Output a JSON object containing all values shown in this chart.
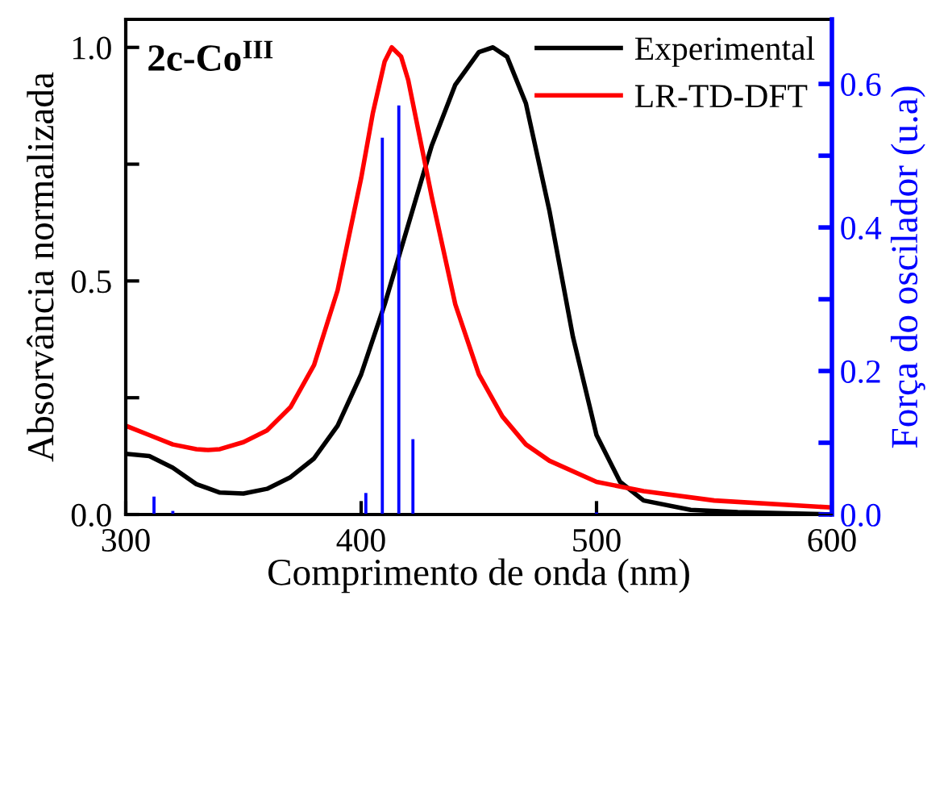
{
  "chart_data": {
    "type": "line",
    "xlabel": "Comprimento de onda (nm)",
    "ylabel": "Absorvância normalizada",
    "y2label": "Força do oscilador (u.a)",
    "annotations": [
      "2c-Co$^{III}$"
    ],
    "xlim": [
      300,
      600
    ],
    "xticks": [
      300,
      400,
      500,
      600
    ],
    "ylim": [
      0,
      1.06
    ],
    "yticks": [
      {
        "value": 0,
        "label": "0.0"
      },
      {
        "value": 0.25,
        "label": null
      },
      0.5,
      {
        "value": 0.75,
        "label": null
      },
      {
        "value": 1,
        "label": "1.0"
      }
    ],
    "y2lim": [
      0,
      0.69
    ],
    "y2ticks": [
      {
        "value": 0,
        "label": "0.0"
      },
      {
        "value": 0.1,
        "label": null
      },
      0.2,
      {
        "value": 0.3,
        "label": null
      },
      0.4,
      {
        "value": 0.5,
        "label": null
      },
      0.6
    ],
    "legend": "top right",
    "grid": false,
    "series": [
      {
        "name": "Experimental",
        "color": "#000000",
        "x": [
          300,
          310,
          320,
          330,
          340,
          350,
          360,
          370,
          380,
          390,
          400,
          410,
          420,
          430,
          440,
          450,
          456,
          462,
          470,
          480,
          490,
          500,
          510,
          520,
          540,
          560,
          600
        ],
        "values": [
          0.13,
          0.125,
          0.1,
          0.065,
          0.047,
          0.045,
          0.055,
          0.08,
          0.12,
          0.19,
          0.3,
          0.45,
          0.62,
          0.79,
          0.92,
          0.99,
          1.0,
          0.98,
          0.88,
          0.65,
          0.38,
          0.17,
          0.07,
          0.03,
          0.01,
          0.005,
          0.0
        ]
      },
      {
        "name": "LR-TD-DFT",
        "color": "#ff0000",
        "x": [
          300,
          310,
          320,
          330,
          335,
          340,
          350,
          360,
          370,
          380,
          390,
          400,
          405,
          410,
          413,
          417,
          420,
          430,
          440,
          450,
          460,
          470,
          480,
          500,
          520,
          550,
          600
        ],
        "values": [
          0.19,
          0.17,
          0.15,
          0.14,
          0.138,
          0.14,
          0.155,
          0.18,
          0.23,
          0.32,
          0.48,
          0.72,
          0.86,
          0.97,
          1.0,
          0.98,
          0.93,
          0.68,
          0.45,
          0.3,
          0.21,
          0.15,
          0.115,
          0.07,
          0.05,
          0.03,
          0.015
        ]
      },
      {
        "type": "bar",
        "axis": "y2",
        "color": "#0000ff",
        "x": [
          312,
          320,
          402,
          409,
          416,
          422,
          500
        ],
        "values": [
          0.025,
          0.005,
          0.03,
          0.525,
          0.57,
          0.105,
          0.003
        ]
      }
    ]
  }
}
